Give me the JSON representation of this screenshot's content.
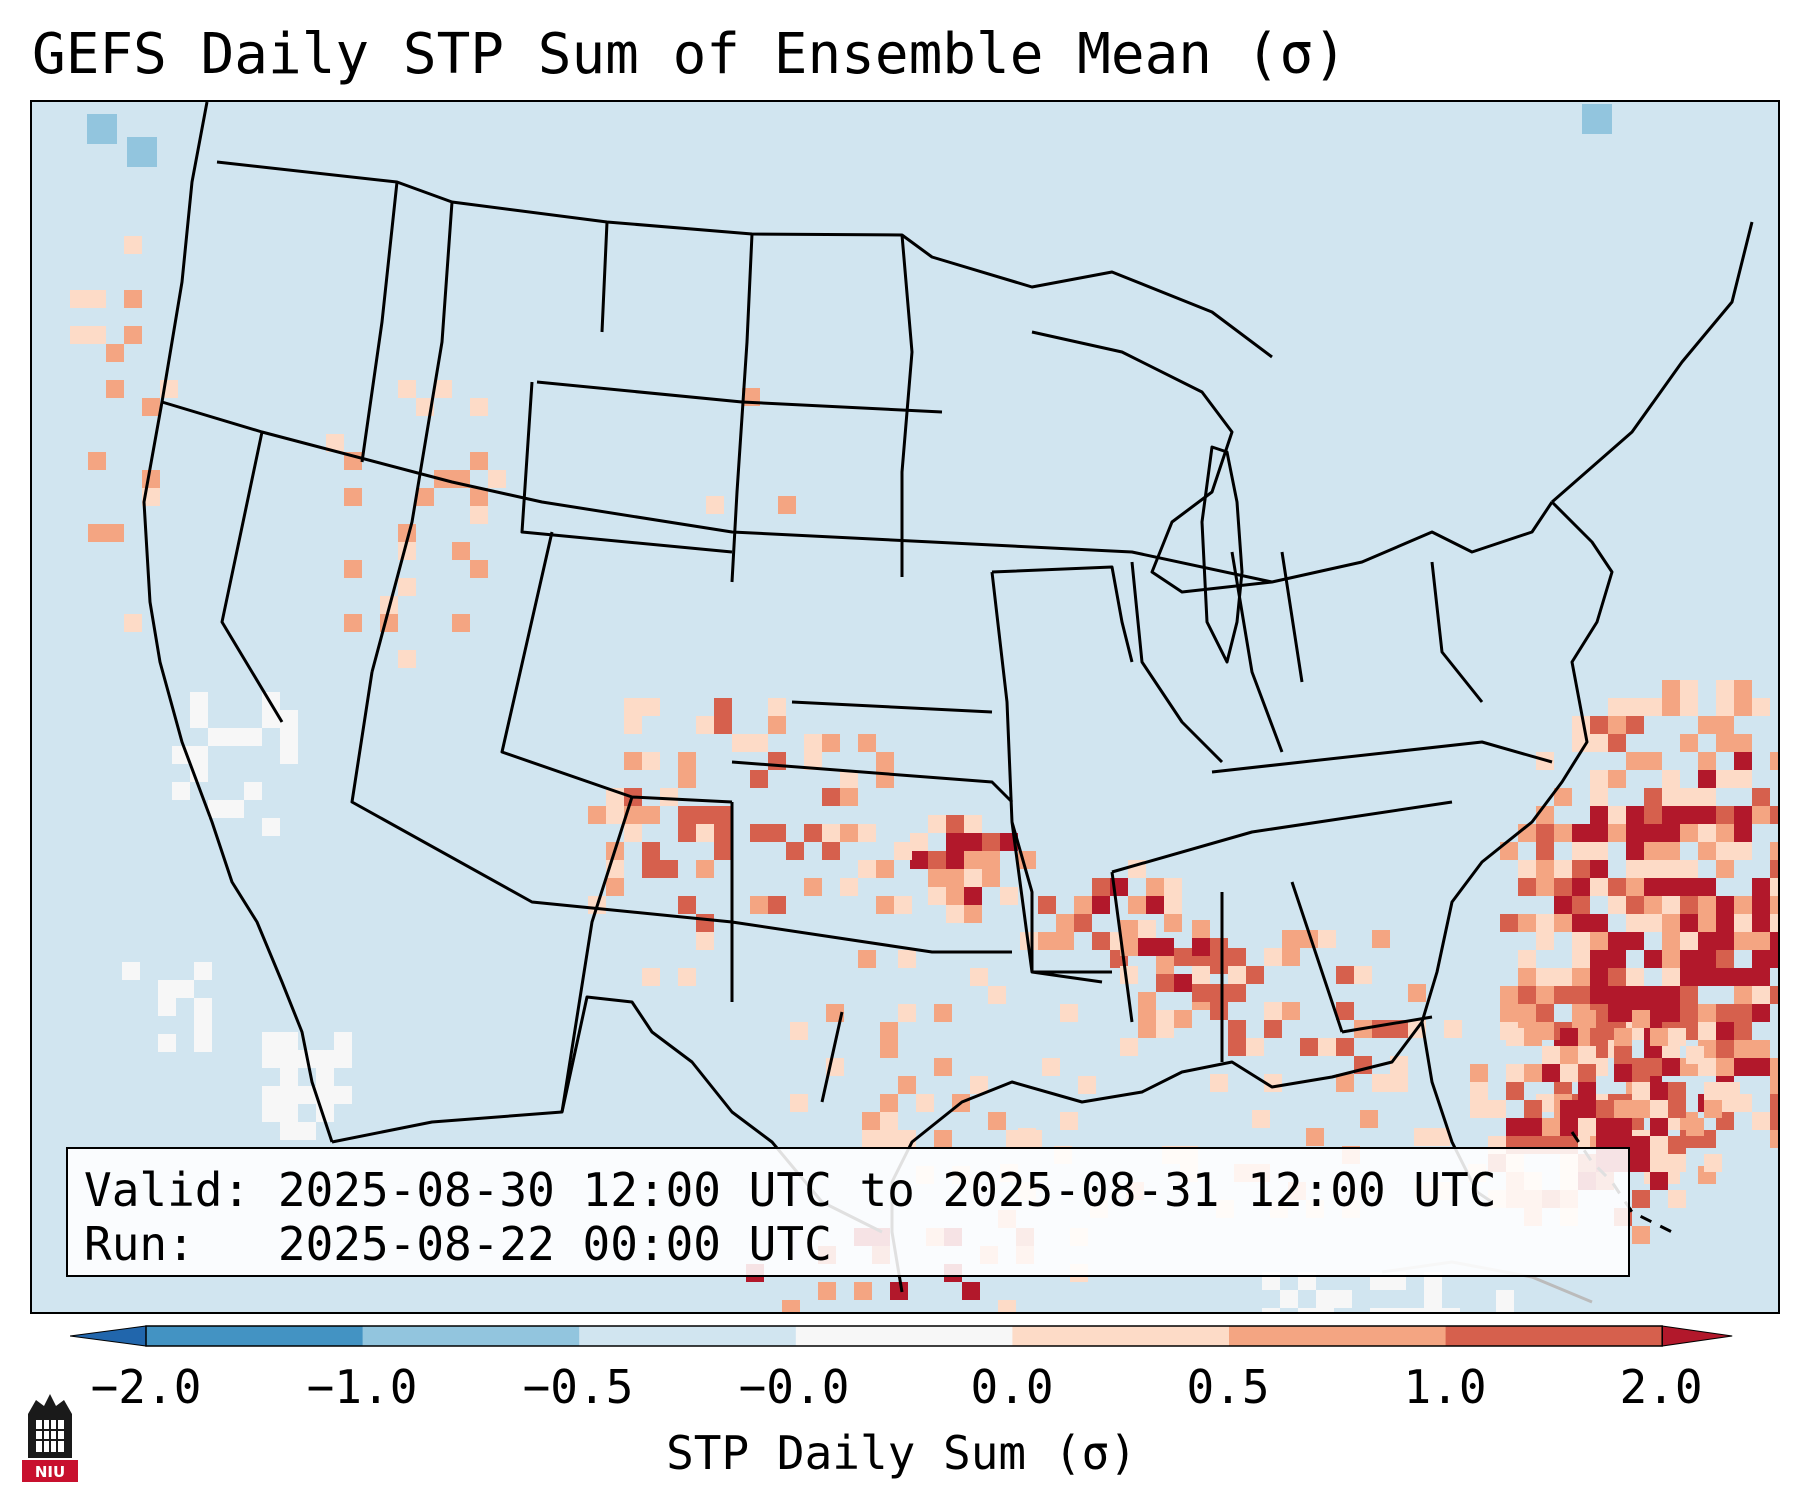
{
  "title": "GEFS Daily STP Sum of Ensemble Mean (σ)",
  "info": {
    "valid_label": "Valid:",
    "valid_value": "2025-08-30 12:00 UTC to 2025-08-31 12:00 UTC",
    "run_label": "Run:",
    "run_value": "2025-08-22 00:00 UTC"
  },
  "colorbar": {
    "label": "STP Daily Sum (σ)",
    "ticks": [
      "−2.0",
      "−1.0",
      "−0.5",
      "−0.0",
      "0.0",
      "0.5",
      "1.0",
      "2.0"
    ],
    "colors": [
      "#2166ac",
      "#4393c3",
      "#92c5de",
      "#d1e5f0",
      "#f7f7f7",
      "#fddbc7",
      "#f4a582",
      "#d6604d",
      "#b2182b"
    ]
  },
  "map": {
    "projection": "Lambert Conformal, CONUS",
    "background_class_color": "#d1e5f0",
    "max_anomaly_region": "Western Atlantic off the Southeast US coast",
    "high_anomaly_areas": [
      "Oklahoma",
      "Arkansas",
      "Mississippi",
      "Western Atlantic / Bahamas"
    ]
  },
  "logo_text": "NIU"
}
